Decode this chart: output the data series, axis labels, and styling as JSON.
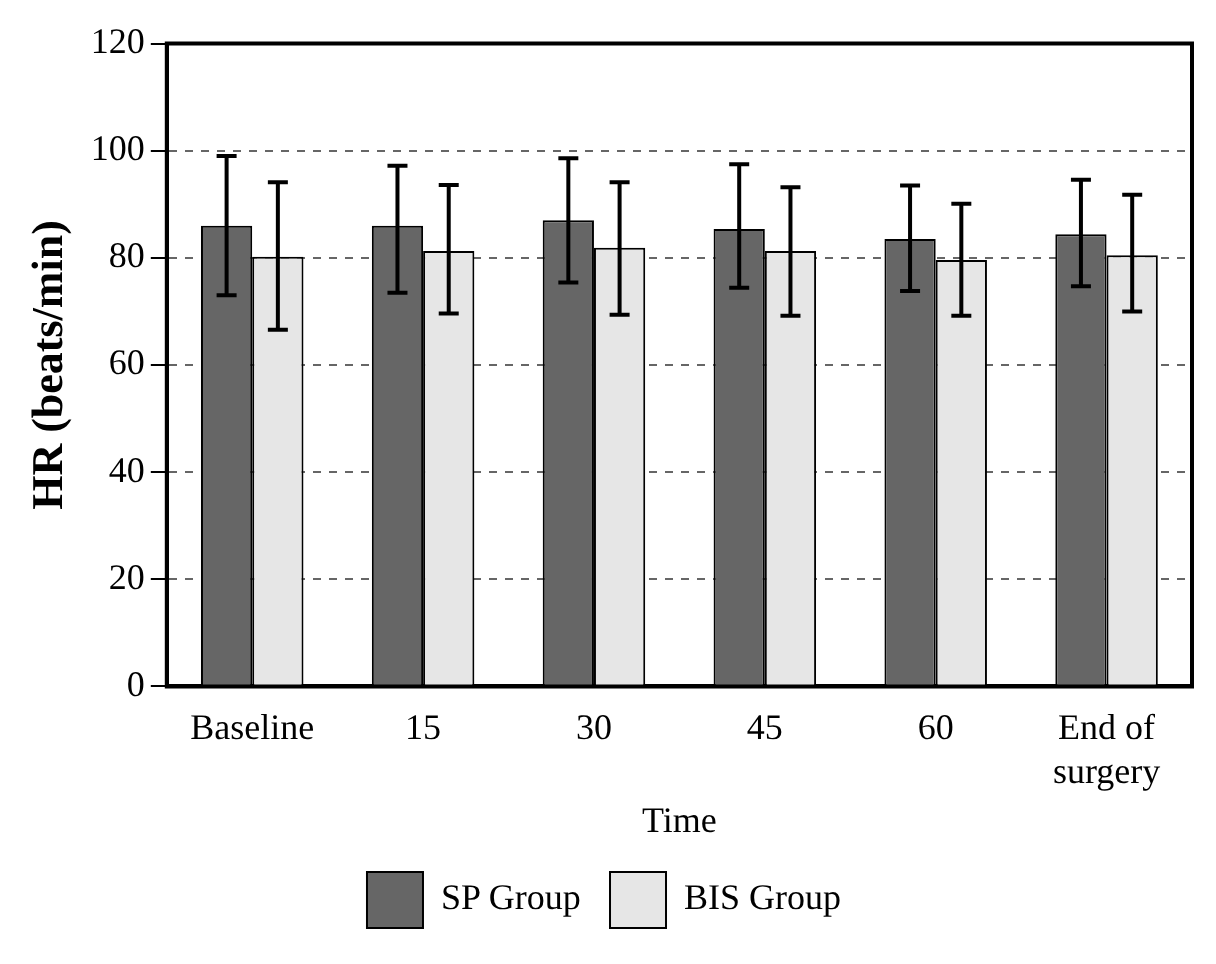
{
  "chart_data": {
    "type": "bar",
    "xlabel": "Time",
    "ylabel": "HR (beats/min)",
    "categories": [
      "Baseline",
      "15",
      "30",
      "45",
      "60",
      "End of surgery"
    ],
    "series": [
      {
        "name": "SP Group",
        "color": "#666666",
        "values": [
          86,
          86,
          87,
          85.4,
          83.5,
          84.4
        ],
        "errors": [
          [
            73,
            99
          ],
          [
            73.5,
            97.2
          ],
          [
            75.4,
            98.6
          ],
          [
            74.4,
            97.5
          ],
          [
            73.8,
            93.5
          ],
          [
            74.7,
            94.6
          ]
        ]
      },
      {
        "name": "BIS Group",
        "color": "#e6e6e6",
        "values": [
          80.2,
          81.3,
          81.9,
          81.3,
          79.6,
          80.5
        ],
        "errors": [
          [
            66.6,
            94.1
          ],
          [
            69.6,
            93.6
          ],
          [
            69.4,
            94.1
          ],
          [
            69.2,
            93.2
          ],
          [
            69.2,
            90.1
          ],
          [
            70,
            91.8
          ]
        ]
      }
    ],
    "ylim": [
      0,
      120
    ],
    "yticks": [
      0,
      20,
      40,
      60,
      80,
      100,
      120
    ],
    "grid": "y",
    "legend": "bottom"
  }
}
